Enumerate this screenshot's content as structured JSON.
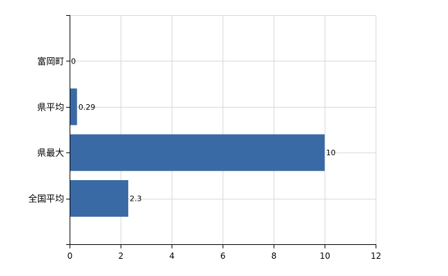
{
  "chart_data": {
    "type": "bar",
    "orientation": "horizontal",
    "categories": [
      "富岡町",
      "県平均",
      "県最大",
      "全国平均"
    ],
    "values": [
      0,
      0.29,
      10,
      2.3
    ],
    "value_labels": [
      "0",
      "0.29",
      "10",
      "2.3"
    ],
    "x_ticks": [
      0,
      2,
      4,
      6,
      8,
      10,
      12
    ],
    "xlim": [
      0,
      12
    ],
    "grid": true,
    "legend": "none",
    "bar_color": "#3a6aa5"
  }
}
